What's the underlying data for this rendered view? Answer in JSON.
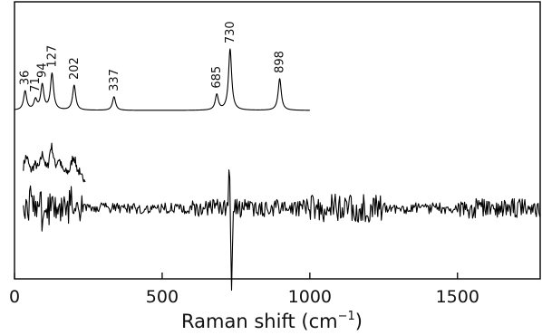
{
  "chart_data": {
    "type": "line",
    "xlabel": "Raman shift (cm",
    "xlabel_sup": "−1",
    "xlabel_close": ")",
    "xlim": [
      0,
      1780
    ],
    "x_ticks": [
      0,
      500,
      1000,
      1500
    ],
    "x_tick_labels": [
      "0",
      "500",
      "1000",
      "1500"
    ],
    "y_ticks_shown": false,
    "grid": false,
    "peak_labels": [
      "36",
      "71",
      "94",
      "127",
      "202",
      "337",
      "685",
      "730",
      "898"
    ],
    "series": [
      {
        "label": "calculated spectrum (top)",
        "x_range": [
          0,
          1000
        ],
        "peaks": [
          {
            "x": 36,
            "height": 0.42
          },
          {
            "x": 71,
            "height": 0.22
          },
          {
            "x": 94,
            "height": 0.55
          },
          {
            "x": 127,
            "height": 0.8
          },
          {
            "x": 202,
            "height": 0.55
          },
          {
            "x": 337,
            "height": 0.3
          },
          {
            "x": 685,
            "height": 0.34
          },
          {
            "x": 730,
            "height": 1.35
          },
          {
            "x": 898,
            "height": 0.7
          }
        ]
      },
      {
        "label": "low-frequency experimental segment (middle)",
        "x_range": [
          30,
          240
        ]
      },
      {
        "label": "experimental spectrum (bottom)",
        "x_range": [
          30,
          1780
        ]
      }
    ]
  }
}
